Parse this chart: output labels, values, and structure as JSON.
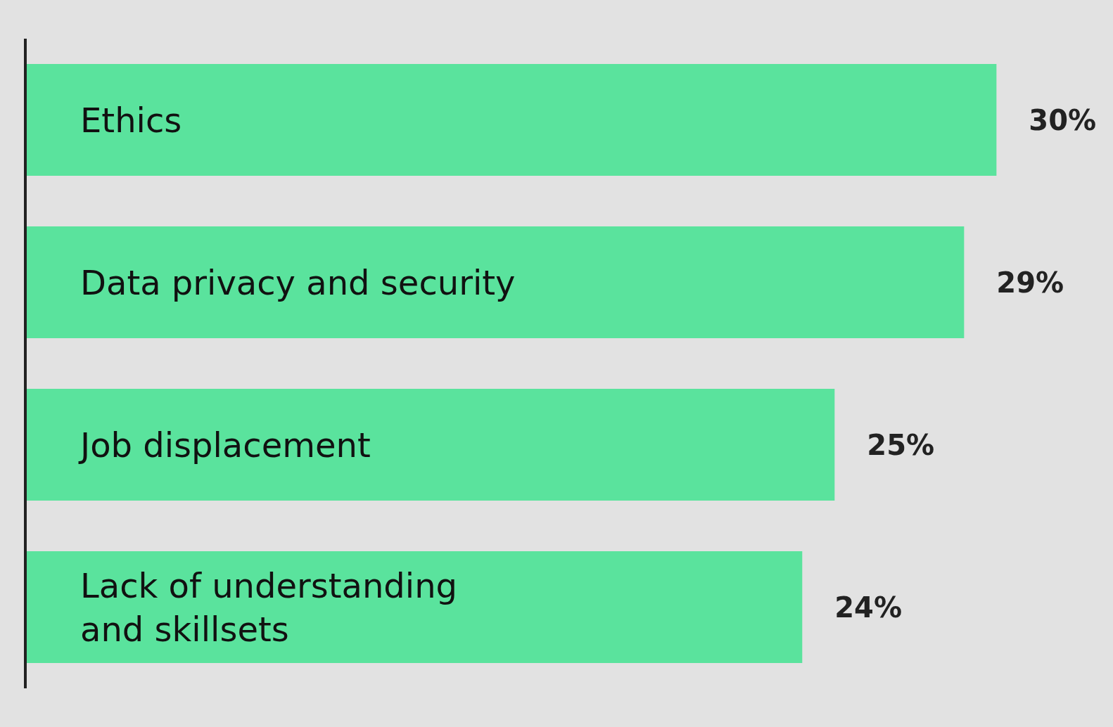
{
  "chart_data": {
    "type": "bar",
    "orientation": "horizontal",
    "categories": [
      "Ethics",
      "Data privacy and security",
      "Job displacement",
      "Lack of understanding\nand skillsets"
    ],
    "values": [
      30,
      29,
      25,
      24
    ],
    "color": "#5ae39d",
    "value_labels": [
      "30%",
      "29%",
      "25%",
      "24%"
    ]
  }
}
